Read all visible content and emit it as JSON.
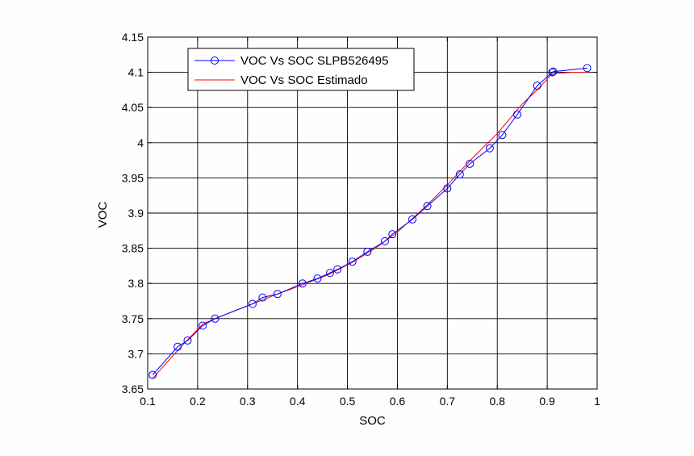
{
  "chart_data": {
    "type": "line",
    "title": "",
    "xlabel": "SOC",
    "ylabel": "VOC",
    "xlim": [
      0.1,
      1
    ],
    "ylim": [
      3.65,
      4.15
    ],
    "grid": true,
    "x_ticks": [
      0.1,
      0.2,
      0.3,
      0.4,
      0.5,
      0.6,
      0.7,
      0.8,
      0.9,
      1
    ],
    "x_tick_labels": [
      "0.1",
      "0.2",
      "0.3",
      "0.4",
      "0.5",
      "0.6",
      "0.7",
      "0.8",
      "0.9",
      "1"
    ],
    "y_ticks": [
      3.65,
      3.7,
      3.75,
      3.8,
      3.85,
      3.9,
      3.95,
      4,
      4.05,
      4.1,
      4.15
    ],
    "y_tick_labels": [
      "3.65",
      "3.7",
      "3.75",
      "3.8",
      "3.85",
      "3.9",
      "3.95",
      "4",
      "4.05",
      "4.1",
      "4.15"
    ],
    "legend_position": "top-left",
    "series": [
      {
        "name": "VOC Vs SOC SLPB526495",
        "color": "#0000ff",
        "marker": "circle",
        "x": [
          0.11,
          0.16,
          0.18,
          0.21,
          0.235,
          0.31,
          0.33,
          0.36,
          0.41,
          0.44,
          0.465,
          0.48,
          0.51,
          0.54,
          0.575,
          0.59,
          0.63,
          0.66,
          0.7,
          0.725,
          0.745,
          0.785,
          0.81,
          0.84,
          0.88,
          0.91,
          0.912,
          0.98
        ],
        "y": [
          3.67,
          3.71,
          3.719,
          3.74,
          3.75,
          3.771,
          3.78,
          3.785,
          3.8,
          3.807,
          3.815,
          3.82,
          3.831,
          3.845,
          3.86,
          3.87,
          3.891,
          3.91,
          3.935,
          3.955,
          3.97,
          3.992,
          4.011,
          4.04,
          4.081,
          4.1,
          4.101,
          4.106
        ]
      },
      {
        "name": "VOC Vs SOC Estimado",
        "color": "#ff0000",
        "marker": "none",
        "x": [
          0.11,
          0.15,
          0.18,
          0.21,
          0.235,
          0.27,
          0.31,
          0.36,
          0.41,
          0.46,
          0.51,
          0.56,
          0.6,
          0.65,
          0.7,
          0.75,
          0.8,
          0.85,
          0.88,
          0.91,
          0.95,
          0.98
        ],
        "y": [
          3.665,
          3.697,
          3.72,
          3.742,
          3.75,
          3.76,
          3.771,
          3.785,
          3.798,
          3.812,
          3.83,
          3.852,
          3.873,
          3.905,
          3.94,
          3.978,
          4.013,
          4.055,
          4.075,
          4.098,
          4.1,
          4.1
        ]
      }
    ]
  }
}
